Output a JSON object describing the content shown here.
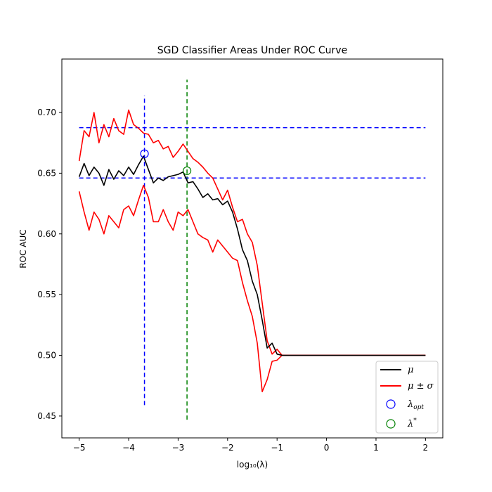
{
  "chart_data": {
    "type": "line",
    "title": "SGD Classifier Areas Under ROC Curve",
    "xlabel": "log₁₀(λ)",
    "ylabel": "ROC AUC",
    "xlim": [
      -5.35,
      2.35
    ],
    "ylim": [
      0.432,
      0.744
    ],
    "xticks": [
      -5,
      -4,
      -3,
      -2,
      -1,
      0,
      1,
      2
    ],
    "xtick_labels": [
      "−5",
      "−4",
      "−3",
      "−2",
      "−1",
      "0",
      "1",
      "2"
    ],
    "yticks": [
      0.45,
      0.5,
      0.55,
      0.6,
      0.65,
      0.7
    ],
    "ytick_labels": [
      "0.45",
      "0.50",
      "0.55",
      "0.60",
      "0.65",
      "0.70"
    ],
    "grid": false,
    "legend_position": "bottom-right",
    "series": [
      {
        "name": "μ",
        "color": "#000000",
        "x": [
          -5.0,
          -4.9,
          -4.8,
          -4.7,
          -4.6,
          -4.5,
          -4.4,
          -4.3,
          -4.2,
          -4.1,
          -4.0,
          -3.9,
          -3.8,
          -3.7,
          -3.6,
          -3.5,
          -3.4,
          -3.3,
          -3.2,
          -3.1,
          -3.0,
          -2.9,
          -2.8,
          -2.7,
          -2.6,
          -2.5,
          -2.4,
          -2.3,
          -2.2,
          -2.1,
          -2.0,
          -1.9,
          -1.8,
          -1.7,
          -1.6,
          -1.5,
          -1.4,
          -1.3,
          -1.2,
          -1.1,
          -1.0,
          -0.9,
          2.0
        ],
        "y": [
          0.647,
          0.658,
          0.648,
          0.655,
          0.65,
          0.64,
          0.653,
          0.645,
          0.652,
          0.648,
          0.655,
          0.649,
          0.657,
          0.664,
          0.653,
          0.642,
          0.646,
          0.644,
          0.647,
          0.648,
          0.649,
          0.651,
          0.642,
          0.643,
          0.637,
          0.63,
          0.633,
          0.628,
          0.629,
          0.624,
          0.627,
          0.618,
          0.604,
          0.587,
          0.578,
          0.561,
          0.55,
          0.529,
          0.506,
          0.51,
          0.501,
          0.5,
          0.5
        ]
      },
      {
        "name": "μ ± σ",
        "color": "#ff0000",
        "x": [
          -5.0,
          -4.9,
          -4.8,
          -4.7,
          -4.6,
          -4.5,
          -4.4,
          -4.3,
          -4.2,
          -4.1,
          -4.0,
          -3.9,
          -3.8,
          -3.7,
          -3.6,
          -3.5,
          -3.4,
          -3.3,
          -3.2,
          -3.1,
          -3.0,
          -2.9,
          -2.8,
          -2.7,
          -2.6,
          -2.5,
          -2.4,
          -2.3,
          -2.2,
          -2.1,
          -2.0,
          -1.9,
          -1.8,
          -1.7,
          -1.6,
          -1.5,
          -1.4,
          -1.3,
          -1.2,
          -1.1,
          -1.0,
          -0.9,
          2.0
        ],
        "y": [
          0.66,
          0.685,
          0.68,
          0.7,
          0.675,
          0.69,
          0.68,
          0.695,
          0.685,
          0.682,
          0.702,
          0.69,
          0.687,
          0.683,
          0.682,
          0.675,
          0.677,
          0.67,
          0.672,
          0.663,
          0.668,
          0.674,
          0.668,
          0.662,
          0.659,
          0.655,
          0.65,
          0.646,
          0.637,
          0.628,
          0.636,
          0.622,
          0.61,
          0.612,
          0.6,
          0.593,
          0.574,
          0.543,
          0.512,
          0.501,
          0.505,
          0.5,
          0.5
        ]
      },
      {
        "name": "",
        "color": "#ff0000",
        "x": [
          -5.0,
          -4.9,
          -4.8,
          -4.7,
          -4.6,
          -4.5,
          -4.4,
          -4.3,
          -4.2,
          -4.1,
          -4.0,
          -3.9,
          -3.8,
          -3.7,
          -3.6,
          -3.5,
          -3.4,
          -3.3,
          -3.2,
          -3.1,
          -3.0,
          -2.9,
          -2.8,
          -2.7,
          -2.6,
          -2.5,
          -2.4,
          -2.3,
          -2.2,
          -2.1,
          -2.0,
          -1.9,
          -1.8,
          -1.7,
          -1.6,
          -1.5,
          -1.4,
          -1.3,
          -1.2,
          -1.1,
          -1.0,
          -0.9,
          2.0
        ],
        "y": [
          0.635,
          0.618,
          0.603,
          0.618,
          0.612,
          0.6,
          0.615,
          0.61,
          0.605,
          0.62,
          0.623,
          0.615,
          0.628,
          0.64,
          0.63,
          0.61,
          0.61,
          0.62,
          0.61,
          0.603,
          0.618,
          0.615,
          0.62,
          0.61,
          0.6,
          0.597,
          0.595,
          0.585,
          0.595,
          0.59,
          0.585,
          0.58,
          0.578,
          0.56,
          0.545,
          0.532,
          0.51,
          0.47,
          0.48,
          0.495,
          0.496,
          0.5,
          0.5
        ]
      }
    ],
    "markers": [
      {
        "name": "λ_opt",
        "x": -3.68,
        "y": 0.666,
        "color": "#0000ff"
      },
      {
        "name": "λ*",
        "x": -2.82,
        "y": 0.652,
        "color": "#008000"
      }
    ],
    "reference_lines": [
      {
        "orientation": "vertical",
        "x": -3.68,
        "y_range": [
          0.459,
          0.714
        ],
        "color": "#0000ff"
      },
      {
        "orientation": "vertical",
        "x": -2.82,
        "y_range": [
          0.447,
          0.727
        ],
        "color": "#008000"
      },
      {
        "orientation": "horizontal",
        "y": 0.6875,
        "x_range": [
          -5.0,
          2.0
        ],
        "color": "#0000ff"
      },
      {
        "orientation": "horizontal",
        "y": 0.646,
        "x_range": [
          -5.0,
          2.0
        ],
        "color": "#0000ff"
      }
    ]
  }
}
